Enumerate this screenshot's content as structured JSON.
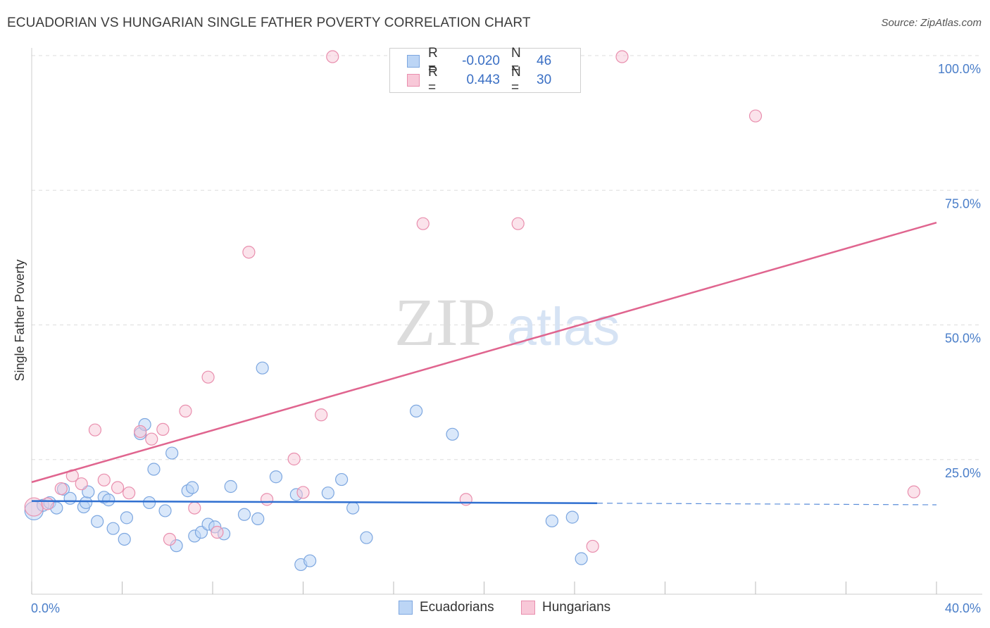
{
  "title": "ECUADORIAN VS HUNGARIAN SINGLE FATHER POVERTY CORRELATION CHART",
  "source": "Source: ZipAtlas.com",
  "watermark": {
    "zip": "ZIP",
    "atlas": "atlas"
  },
  "legend": {
    "rows": [
      {
        "r_label": "R =",
        "r_value": "-0.020",
        "n_label": "N =",
        "n_value": "46"
      },
      {
        "r_label": "R =",
        "r_value": "0.443",
        "n_label": "N =",
        "n_value": "30"
      }
    ]
  },
  "bottom_legend": {
    "ecuadorians": "Ecuadorians",
    "hungarians": "Hungarians"
  },
  "colors": {
    "blue_fill": "#bcd5f5",
    "blue_stroke": "#7da7e0",
    "blue_line": "#2f6fd0",
    "pink_fill": "#f8c8d8",
    "pink_stroke": "#e98fae",
    "pink_line": "#e0658f",
    "tick_text": "#4a7ec9",
    "grid": "#dddddd"
  },
  "chart_data": {
    "type": "scatter",
    "title": "ECUADORIAN VS HUNGARIAN SINGLE FATHER POVERTY CORRELATION CHART",
    "xlabel": "",
    "ylabel": "Single Father Poverty",
    "xlim": [
      0,
      40
    ],
    "ylim": [
      0,
      100
    ],
    "x_tick_labels": [
      "0.0%",
      "40.0%"
    ],
    "y_tick_labels": [
      "25.0%",
      "50.0%",
      "75.0%",
      "100.0%"
    ],
    "y_ticks": [
      25,
      50,
      75,
      100
    ],
    "series": [
      {
        "name": "Ecuadorians",
        "r": -0.02,
        "n": 46,
        "trend": {
          "x": [
            0,
            25
          ],
          "y": [
            17.3,
            16.9
          ],
          "dashed_to_x": 40,
          "dashed_end_y": 16.6
        },
        "points": [
          [
            0.1,
            15.5
          ],
          [
            0.5,
            16.5
          ],
          [
            0.8,
            17.0
          ],
          [
            1.1,
            16.0
          ],
          [
            1.4,
            19.5
          ],
          [
            1.7,
            17.8
          ],
          [
            2.3,
            16.2
          ],
          [
            2.4,
            17.0
          ],
          [
            2.5,
            19.0
          ],
          [
            2.9,
            13.5
          ],
          [
            3.2,
            18.0
          ],
          [
            3.4,
            17.5
          ],
          [
            3.6,
            12.2
          ],
          [
            4.1,
            10.2
          ],
          [
            4.2,
            14.2
          ],
          [
            4.8,
            29.8
          ],
          [
            5.0,
            31.5
          ],
          [
            5.2,
            17.0
          ],
          [
            5.4,
            23.2
          ],
          [
            5.9,
            15.5
          ],
          [
            6.2,
            26.2
          ],
          [
            6.4,
            9.0
          ],
          [
            6.9,
            19.2
          ],
          [
            7.1,
            19.8
          ],
          [
            7.2,
            10.8
          ],
          [
            7.5,
            11.5
          ],
          [
            7.8,
            13.0
          ],
          [
            8.1,
            12.5
          ],
          [
            8.5,
            11.2
          ],
          [
            8.8,
            20.0
          ],
          [
            9.4,
            14.8
          ],
          [
            10.0,
            14.0
          ],
          [
            10.2,
            42.0
          ],
          [
            10.8,
            21.8
          ],
          [
            11.7,
            18.5
          ],
          [
            11.9,
            5.5
          ],
          [
            12.3,
            6.2
          ],
          [
            13.1,
            18.8
          ],
          [
            13.7,
            21.3
          ],
          [
            14.2,
            16.0
          ],
          [
            14.8,
            10.5
          ],
          [
            17.0,
            34.0
          ],
          [
            18.6,
            29.7
          ],
          [
            23.0,
            13.6
          ],
          [
            23.9,
            14.3
          ],
          [
            24.3,
            6.6
          ]
        ]
      },
      {
        "name": "Hungarians",
        "r": 0.443,
        "n": 30,
        "trend": {
          "x": [
            0,
            40
          ],
          "y": [
            20.8,
            69.0
          ]
        },
        "points": [
          [
            0.1,
            16.2
          ],
          [
            0.7,
            16.8
          ],
          [
            1.3,
            19.6
          ],
          [
            1.8,
            22.0
          ],
          [
            2.2,
            20.5
          ],
          [
            2.8,
            30.5
          ],
          [
            3.2,
            21.2
          ],
          [
            3.8,
            19.8
          ],
          [
            4.3,
            18.8
          ],
          [
            4.8,
            30.2
          ],
          [
            5.3,
            28.8
          ],
          [
            5.8,
            30.6
          ],
          [
            6.1,
            10.2
          ],
          [
            6.8,
            34.0
          ],
          [
            7.2,
            16.0
          ],
          [
            7.8,
            40.3
          ],
          [
            8.2,
            11.5
          ],
          [
            9.6,
            63.5
          ],
          [
            10.4,
            17.6
          ],
          [
            11.6,
            25.1
          ],
          [
            12.0,
            18.9
          ],
          [
            12.8,
            33.3
          ],
          [
            13.3,
            99.8
          ],
          [
            17.3,
            68.8
          ],
          [
            19.2,
            17.6
          ],
          [
            21.5,
            68.8
          ],
          [
            24.8,
            8.9
          ],
          [
            26.1,
            99.8
          ],
          [
            32.0,
            88.8
          ],
          [
            39.0,
            19.0
          ]
        ]
      }
    ]
  }
}
